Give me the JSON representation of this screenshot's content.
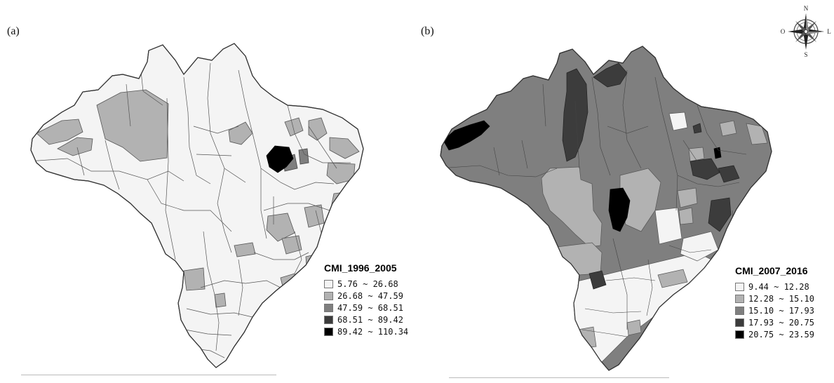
{
  "panels": [
    {
      "label": "(a)",
      "legend": {
        "title": "CMI_1996_2005",
        "classes": [
          {
            "range": "5.76 ~ 26.68",
            "color": "#f4f4f4"
          },
          {
            "range": "26.68 ~ 47.59",
            "color": "#b2b2b2"
          },
          {
            "range": "47.59 ~ 68.51",
            "color": "#7f7f7f"
          },
          {
            "range": "68.51 ~ 89.42",
            "color": "#3c3c3c"
          },
          {
            "range": "89.42 ~ 110.34",
            "color": "#000000"
          }
        ]
      }
    },
    {
      "label": "(b)",
      "legend": {
        "title": "CMI_2007_2016",
        "classes": [
          {
            "range": "9.44 ~ 12.28",
            "color": "#f4f4f4"
          },
          {
            "range": "12.28 ~ 15.10",
            "color": "#b2b2b2"
          },
          {
            "range": "15.10 ~ 17.93",
            "color": "#7f7f7f"
          },
          {
            "range": "17.93 ~ 20.75",
            "color": "#3c3c3c"
          },
          {
            "range": "20.75 ~ 23.59",
            "color": "#000000"
          }
        ]
      }
    }
  ],
  "compass": {
    "north": "N",
    "south": "S",
    "east": "L",
    "west": "O"
  }
}
